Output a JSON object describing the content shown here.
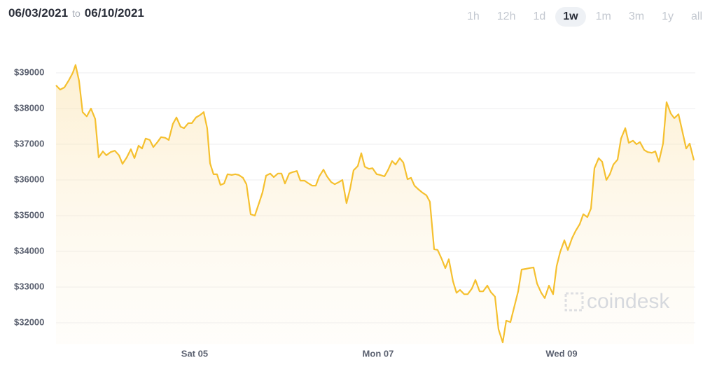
{
  "header": {
    "from": "06/03/2021",
    "to_word": "to",
    "to": "06/10/2021"
  },
  "range_buttons": [
    "1h",
    "12h",
    "1d",
    "1w",
    "1m",
    "3m",
    "1y",
    "all"
  ],
  "active_range": "1w",
  "watermark": "coindesk",
  "chart_data": {
    "type": "line",
    "color": "#f5c02f",
    "grid": true,
    "xlim": [
      3.489,
      10.443
    ],
    "ylim": [
      31400,
      39500
    ],
    "xticks": [
      {
        "value": 5,
        "label": "Sat 05"
      },
      {
        "value": 7,
        "label": "Mon 07"
      },
      {
        "value": 9,
        "label": "Wed 09"
      }
    ],
    "yticks": [
      {
        "value": 32000,
        "label": "$32000"
      },
      {
        "value": 33000,
        "label": "$33000"
      },
      {
        "value": 34000,
        "label": "$34000"
      },
      {
        "value": 35000,
        "label": "$35000"
      },
      {
        "value": 36000,
        "label": "$36000"
      },
      {
        "value": 37000,
        "label": "$37000"
      },
      {
        "value": 38000,
        "label": "$38000"
      },
      {
        "value": 39000,
        "label": "$39000"
      }
    ],
    "x": [
      3.489,
      3.534,
      3.58,
      3.626,
      3.672,
      3.702,
      3.74,
      3.779,
      3.824,
      3.87,
      3.916,
      3.954,
      4.0,
      4.038,
      4.084,
      4.13,
      4.176,
      4.214,
      4.26,
      4.305,
      4.344,
      4.389,
      4.427,
      4.466,
      4.511,
      4.55,
      4.595,
      4.634,
      4.679,
      4.718,
      4.763,
      4.802,
      4.847,
      4.885,
      4.931,
      4.969,
      5.015,
      5.061,
      5.099,
      5.137,
      5.168,
      5.206,
      5.244,
      5.282,
      5.321,
      5.359,
      5.405,
      5.443,
      5.481,
      5.527,
      5.565,
      5.611,
      5.656,
      5.702,
      5.74,
      5.779,
      5.824,
      5.863,
      5.908,
      5.947,
      5.985,
      6.031,
      6.069,
      6.115,
      6.153,
      6.198,
      6.244,
      6.282,
      6.321,
      6.359,
      6.405,
      6.443,
      6.489,
      6.527,
      6.573,
      6.611,
      6.656,
      6.695,
      6.733,
      6.779,
      6.817,
      6.855,
      6.901,
      6.939,
      6.985,
      7.023,
      7.069,
      7.107,
      7.153,
      7.191,
      7.237,
      7.275,
      7.321,
      7.359,
      7.397,
      7.443,
      7.481,
      7.527,
      7.565,
      7.611,
      7.649,
      7.695,
      7.733,
      7.771,
      7.817,
      7.855,
      7.893,
      7.939,
      7.977,
      8.023,
      8.061,
      8.107,
      8.145,
      8.191,
      8.229,
      8.275,
      8.313,
      8.359,
      8.397,
      8.443,
      8.481,
      8.527,
      8.565,
      8.611,
      8.649,
      8.695,
      8.733,
      8.779,
      8.817,
      8.863,
      8.908,
      8.947,
      8.985,
      9.031,
      9.069,
      9.115,
      9.153,
      9.198,
      9.237,
      9.282,
      9.321,
      9.359,
      9.405,
      9.443,
      9.489,
      9.527,
      9.565,
      9.611,
      9.649,
      9.695,
      9.733,
      9.779,
      9.817,
      9.855,
      9.901,
      9.939,
      9.985,
      10.023,
      10.061,
      10.107,
      10.145,
      10.191,
      10.229,
      10.275,
      10.313,
      10.359,
      10.397,
      10.443
    ],
    "values": [
      38650,
      38530,
      38590,
      38780,
      39000,
      39220,
      38780,
      37900,
      37780,
      38000,
      37710,
      36630,
      36800,
      36690,
      36780,
      36820,
      36690,
      36450,
      36630,
      36860,
      36610,
      36960,
      36880,
      37160,
      37120,
      36920,
      37060,
      37200,
      37180,
      37120,
      37570,
      37750,
      37490,
      37450,
      37590,
      37590,
      37750,
      37820,
      37900,
      37450,
      36470,
      36160,
      36160,
      35860,
      35900,
      36160,
      36140,
      36160,
      36140,
      36060,
      35880,
      35040,
      35000,
      35350,
      35650,
      36120,
      36180,
      36080,
      36180,
      36180,
      35900,
      36180,
      36220,
      36250,
      35980,
      35980,
      35900,
      35840,
      35840,
      36100,
      36290,
      36100,
      35940,
      35880,
      35940,
      36000,
      35350,
      35750,
      36270,
      36390,
      36750,
      36370,
      36310,
      36330,
      36160,
      36140,
      36100,
      36270,
      36530,
      36430,
      36610,
      36490,
      36020,
      36060,
      35840,
      35730,
      35650,
      35570,
      35390,
      34060,
      34040,
      33780,
      33530,
      33780,
      33160,
      32840,
      32920,
      32800,
      32800,
      32960,
      33200,
      32880,
      32880,
      33040,
      32860,
      32730,
      31820,
      31450,
      32060,
      32020,
      32410,
      32880,
      33490,
      33510,
      33530,
      33550,
      33100,
      32840,
      32690,
      33040,
      32800,
      33590,
      33980,
      34310,
      34040,
      34370,
      34570,
      34760,
      35040,
      34960,
      35200,
      36330,
      36610,
      36510,
      36000,
      36160,
      36430,
      36570,
      37160,
      37450,
      37040,
      37100,
      37000,
      37060,
      36840,
      36780,
      36760,
      36800,
      36510,
      37020,
      38180,
      37860,
      37730,
      37840,
      37410,
      36880,
      37020,
      36550
    ]
  }
}
